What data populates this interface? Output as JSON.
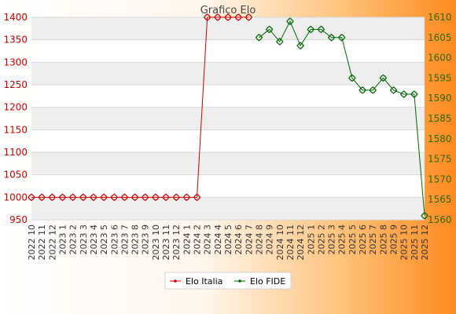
{
  "chart_data": {
    "type": "line",
    "title": "Grafico Elo",
    "categories": [
      "2022 10",
      "2022 11",
      "2022 12",
      "2023 1",
      "2023 2",
      "2023 3",
      "2023 4",
      "2023 5",
      "2023 6",
      "2023 7",
      "2023 8",
      "2023 9",
      "2023 10",
      "2023 11",
      "2023 12",
      "2024 1",
      "2024 2",
      "2024 3",
      "2024 4",
      "2024 5",
      "2024 6",
      "2024 7",
      "2024 8",
      "2024 9",
      "2024 10",
      "2024 11",
      "2024 12",
      "2025 1",
      "2025 2",
      "2025 3",
      "2025 4",
      "2025 5",
      "2025 6",
      "2025 7",
      "2025 8",
      "2025 9",
      "2025 10",
      "2025 11",
      "2025 12"
    ],
    "series": [
      {
        "name": "Elo Italia",
        "axis": "left",
        "color": "#cc0000",
        "values": [
          1000,
          1000,
          1000,
          1000,
          1000,
          1000,
          1000,
          1000,
          1000,
          1000,
          1000,
          1000,
          1000,
          1000,
          1000,
          1000,
          1000,
          1400,
          1400,
          1400,
          1400,
          1400,
          null,
          null,
          null,
          null,
          null,
          null,
          null,
          null,
          null,
          null,
          null,
          null,
          null,
          null,
          null,
          null,
          null
        ]
      },
      {
        "name": "Elo FIDE",
        "axis": "right",
        "color": "#006600",
        "values": [
          null,
          null,
          null,
          null,
          null,
          null,
          null,
          null,
          null,
          null,
          null,
          null,
          null,
          null,
          null,
          null,
          null,
          null,
          null,
          null,
          null,
          null,
          1605,
          1607,
          1604,
          1609,
          1603,
          1607,
          1607,
          1605,
          1605,
          1595,
          1592,
          1592,
          1595,
          1592,
          1591,
          1591,
          1561
        ]
      }
    ],
    "y_left": {
      "min": 950,
      "max": 1400,
      "ticks": [
        "950",
        "1000",
        "1050",
        "1100",
        "1150",
        "1200",
        "1250",
        "1300",
        "1350",
        "1400"
      ]
    },
    "y_right": {
      "min": 1560,
      "max": 1610,
      "ticks": [
        "1560",
        "1565",
        "1570",
        "1575",
        "1580",
        "1585",
        "1590",
        "1595",
        "1600",
        "1605",
        "1610"
      ]
    },
    "grid": true,
    "legend_position": "bottom",
    "colors": {
      "left_axis_text": "#cc0000",
      "right_axis_text": "#336600",
      "band": "#eeeeee",
      "background_from": "#ffffff",
      "background_to": "#ff8a1f"
    }
  }
}
